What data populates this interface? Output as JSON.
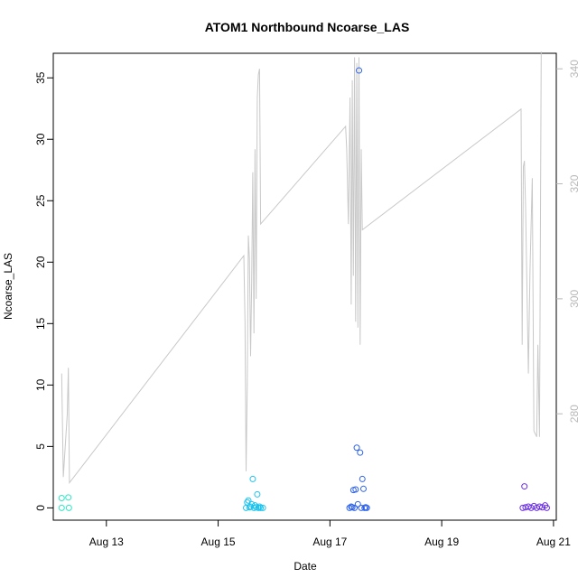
{
  "chart_data": {
    "type": "scatter",
    "title": "ATOM1 Northbound Ncoarse_LAS",
    "xlabel": "Date",
    "ylabel": "Ncoarse_LAS",
    "x_ticks": [
      "Aug 13",
      "Aug 15",
      "Aug 17",
      "Aug 19",
      "Aug 21"
    ],
    "x_tick_days": [
      13,
      15,
      17,
      19,
      21
    ],
    "xlim": [
      12.05,
      21.05
    ],
    "ylim": [
      -1.0,
      37.0
    ],
    "y_ticks": [
      0,
      5,
      10,
      15,
      20,
      25,
      30,
      35
    ],
    "y2lim": [
      261.5,
      342.7
    ],
    "y2_ticks": [
      280,
      300,
      320,
      340
    ],
    "y2_color": "#b8b8b8",
    "grid": false,
    "series": [
      {
        "marker": "circle",
        "color": "#2EE6C3",
        "points": [
          [
            12.2,
            0.8
          ],
          [
            12.2,
            0.0
          ],
          [
            12.32,
            0.85
          ],
          [
            12.33,
            0.0
          ]
        ]
      },
      {
        "marker": "circle",
        "color": "#1BC3EE",
        "points": [
          [
            15.5,
            0.0
          ],
          [
            15.52,
            0.45
          ],
          [
            15.54,
            0.6
          ],
          [
            15.56,
            0.05
          ],
          [
            15.58,
            0.1
          ],
          [
            15.6,
            0.3
          ],
          [
            15.62,
            2.35
          ],
          [
            15.64,
            0.0
          ],
          [
            15.66,
            0.2
          ],
          [
            15.68,
            0.05
          ],
          [
            15.7,
            1.1
          ],
          [
            15.72,
            0.0
          ],
          [
            15.74,
            0.1
          ],
          [
            15.76,
            0.0
          ],
          [
            15.8,
            0.0
          ]
        ]
      },
      {
        "marker": "circle",
        "color": "#2E62E8",
        "points": [
          [
            17.35,
            0.0
          ],
          [
            17.38,
            0.1
          ],
          [
            17.4,
            0.05
          ],
          [
            17.42,
            1.45
          ],
          [
            17.44,
            0.0
          ],
          [
            17.46,
            1.5
          ],
          [
            17.48,
            4.9
          ],
          [
            17.5,
            0.3
          ],
          [
            17.52,
            35.6
          ],
          [
            17.54,
            4.5
          ],
          [
            17.56,
            0.0
          ],
          [
            17.58,
            2.35
          ],
          [
            17.6,
            1.55
          ],
          [
            17.62,
            0.0
          ],
          [
            17.64,
            0.05
          ],
          [
            17.66,
            0.0
          ]
        ]
      },
      {
        "marker": "circle",
        "color": "#6A2EE6",
        "points": [
          [
            20.45,
            0.0
          ],
          [
            20.48,
            1.75
          ],
          [
            20.5,
            0.05
          ],
          [
            20.55,
            0.1
          ],
          [
            20.6,
            0.0
          ],
          [
            20.65,
            0.15
          ],
          [
            20.7,
            0.0
          ],
          [
            20.75,
            0.1
          ],
          [
            20.8,
            0.05
          ],
          [
            20.85,
            0.2
          ],
          [
            20.88,
            0.0
          ]
        ]
      },
      {
        "type": "line",
        "axis": "right",
        "color": "#c8c8c8",
        "points": [
          [
            12.2,
            287.0
          ],
          [
            12.23,
            269.0
          ],
          [
            12.3,
            280.0
          ],
          [
            12.32,
            288.0
          ],
          [
            12.34,
            268.0
          ],
          [
            15.46,
            307.5
          ],
          [
            15.48,
            296.0
          ],
          [
            15.5,
            270.0
          ],
          [
            15.52,
            285.0
          ],
          [
            15.54,
            311.0
          ],
          [
            15.56,
            307.0
          ],
          [
            15.58,
            290.0
          ],
          [
            15.6,
            303.0
          ],
          [
            15.62,
            322.0
          ],
          [
            15.64,
            294.0
          ],
          [
            15.66,
            326.0
          ],
          [
            15.68,
            300.0
          ],
          [
            15.7,
            335.0
          ],
          [
            15.72,
            339.0
          ],
          [
            15.74,
            340.0
          ],
          [
            15.76,
            313.0
          ],
          [
            17.28,
            330.0
          ],
          [
            17.3,
            326.0
          ],
          [
            17.33,
            313.0
          ],
          [
            17.36,
            335.0
          ],
          [
            17.38,
            299.0
          ],
          [
            17.4,
            338.0
          ],
          [
            17.42,
            304.0
          ],
          [
            17.44,
            342.0
          ],
          [
            17.46,
            296.0
          ],
          [
            17.48,
            341.0
          ],
          [
            17.5,
            295.0
          ],
          [
            17.52,
            342.0
          ],
          [
            17.54,
            292.0
          ],
          [
            17.56,
            326.0
          ],
          [
            17.58,
            312.0
          ],
          [
            20.42,
            333.0
          ],
          [
            20.44,
            292.0
          ],
          [
            20.46,
            323.0
          ],
          [
            20.48,
            324.0
          ],
          [
            20.5,
            316.0
          ],
          [
            20.55,
            287.0
          ],
          [
            20.58,
            305.0
          ],
          [
            20.62,
            321.0
          ],
          [
            20.65,
            277.0
          ],
          [
            20.7,
            276.0
          ],
          [
            20.72,
            292.0
          ],
          [
            20.75,
            276.0
          ],
          [
            20.78,
            343.0
          ]
        ]
      }
    ]
  }
}
